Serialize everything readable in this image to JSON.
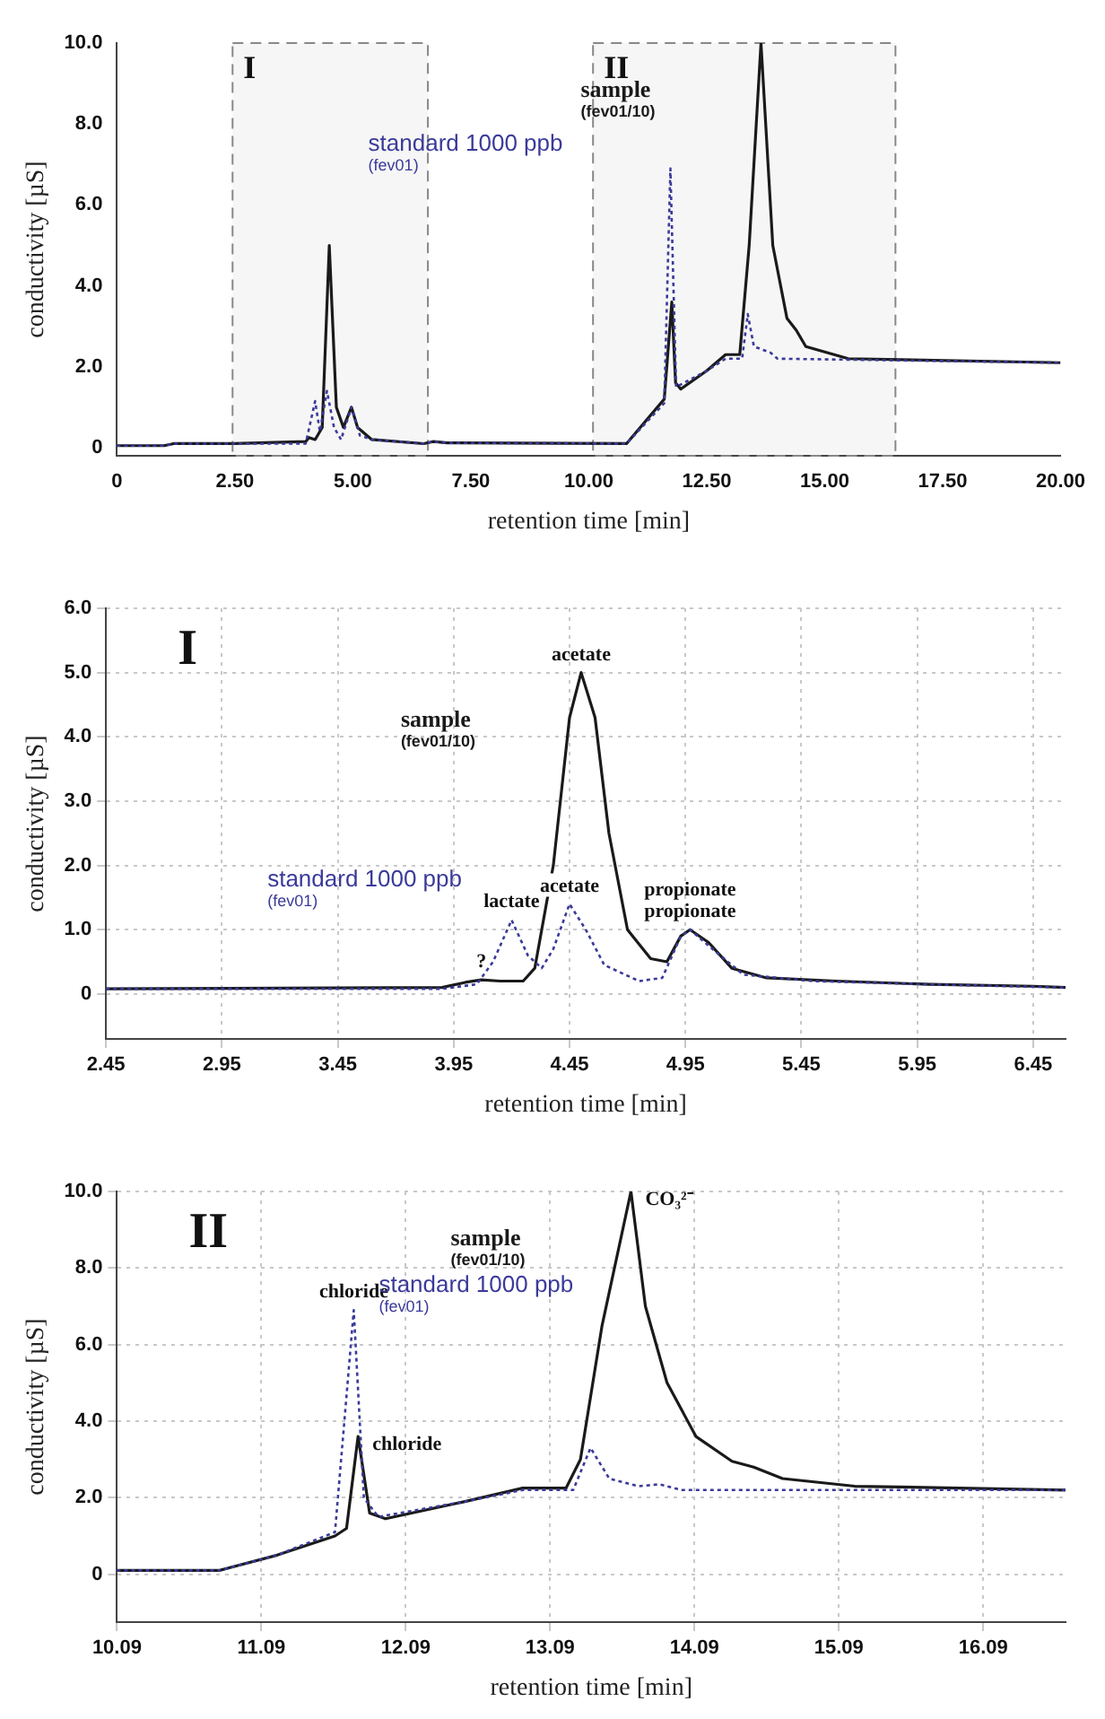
{
  "chart_data": [
    {
      "type": "line",
      "xlabel": "retention time [min]",
      "ylabel": "conductivity [µS]",
      "xlim": [
        0,
        20
      ],
      "ylim": [
        -0.2,
        10
      ],
      "xticks": [
        {
          "value": 0,
          "label": "0"
        },
        {
          "value": 2.5,
          "label": "2.50"
        },
        {
          "value": 5,
          "label": "5.00"
        },
        {
          "value": 7.5,
          "label": "7.50"
        },
        {
          "value": 10,
          "label": "10.00"
        },
        {
          "value": 12.5,
          "label": "12.50"
        },
        {
          "value": 15,
          "label": "15.00"
        },
        {
          "value": 17.5,
          "label": "17.50"
        },
        {
          "value": 20,
          "label": "20.00"
        }
      ],
      "yticks": [
        {
          "value": 0,
          "label": "0"
        },
        {
          "value": 2,
          "label": "2.0"
        },
        {
          "value": 4,
          "label": "4.0"
        },
        {
          "value": 6,
          "label": "6.0"
        },
        {
          "value": 8,
          "label": "8.0"
        },
        {
          "value": 10,
          "label": "10.0"
        }
      ],
      "grid": false,
      "legend": false,
      "bands": [
        {
          "axis": "x",
          "from": 2.45,
          "to": 6.59,
          "label": "I",
          "color": "#888888"
        },
        {
          "axis": "x",
          "from": 10.09,
          "to": 16.5,
          "label": "II",
          "color": "#888888"
        }
      ],
      "series": [
        {
          "name": "sample (fev01/10)",
          "color": "#1a1a1a",
          "line_style": "solid",
          "x": [
            0,
            1,
            1.2,
            2.5,
            4,
            4.07,
            4.2,
            4.35,
            4.5,
            4.65,
            4.8,
            4.97,
            5.1,
            5.4,
            6.5,
            6.7,
            7,
            10.8,
            11.6,
            11.76,
            11.84,
            11.95,
            12.5,
            12.9,
            13.2,
            13.4,
            13.65,
            13.9,
            14.2,
            14.4,
            14.6,
            15.5,
            20
          ],
          "values": [
            0.05,
            0.05,
            0.1,
            0.1,
            0.15,
            0.25,
            0.2,
            0.5,
            5,
            1,
            0.5,
            1,
            0.5,
            0.2,
            0.1,
            0.15,
            0.12,
            0.1,
            1.2,
            3.6,
            1.6,
            1.45,
            1.9,
            2.3,
            2.3,
            5,
            10,
            5,
            3.2,
            2.9,
            2.5,
            2.2,
            2.1
          ]
        },
        {
          "name": "standard 1000 ppb (fev01)",
          "color": "#3a3a9a",
          "line_style": "dotted",
          "x": [
            0,
            1,
            1.2,
            2.5,
            4,
            4.2,
            4.3,
            4.45,
            4.6,
            4.75,
            4.97,
            5.15,
            5.4,
            6.5,
            6.7,
            7,
            10.8,
            11.6,
            11.73,
            11.85,
            12.5,
            12.9,
            13.25,
            13.37,
            13.5,
            13.85,
            14,
            20
          ],
          "values": [
            0.05,
            0.05,
            0.1,
            0.1,
            0.1,
            1.15,
            0.4,
            1.4,
            0.5,
            0.2,
            1,
            0.3,
            0.2,
            0.1,
            0.15,
            0.12,
            0.1,
            1.1,
            6.9,
            1.5,
            1.9,
            2.2,
            2.2,
            3.3,
            2.5,
            2.35,
            2.2,
            2.1
          ]
        }
      ]
    },
    {
      "type": "line",
      "title": "I",
      "xlabel": "retention time [min]",
      "ylabel": "conductivity [µS]",
      "xlim": [
        2.45,
        6.59
      ],
      "ylim": [
        -0.7,
        6
      ],
      "xticks": [
        2.45,
        2.95,
        3.45,
        3.95,
        4.45,
        4.95,
        5.45,
        5.95,
        6.45
      ],
      "yticks": [
        {
          "value": 0,
          "label": "0"
        },
        {
          "value": 1,
          "label": "1.0"
        },
        {
          "value": 2,
          "label": "2.0"
        },
        {
          "value": 3,
          "label": "3.0"
        },
        {
          "value": 4,
          "label": "4.0"
        },
        {
          "value": 5,
          "label": "5.0"
        },
        {
          "value": 6,
          "label": "6.0"
        }
      ],
      "grid": true,
      "legend": false,
      "annotations": [
        {
          "text": "acetate",
          "x": 4.5,
          "y": 5
        },
        {
          "text": "lactate",
          "x": 4.2,
          "y": 1.15
        },
        {
          "text": "acetate",
          "x": 4.45,
          "y": 1.4
        },
        {
          "text": "propionate",
          "x": 4.97,
          "y": 1
        },
        {
          "text": "propionate",
          "x": 4.97,
          "y": 1
        },
        {
          "text": "?",
          "x": 4.07,
          "y": 0.22
        }
      ],
      "series": [
        {
          "name": "sample (fev01/10)",
          "color": "#1a1a1a",
          "line_style": "solid",
          "x": [
            2.45,
            3.9,
            4,
            4.07,
            4.15,
            4.25,
            4.3,
            4.38,
            4.45,
            4.5,
            4.56,
            4.62,
            4.7,
            4.8,
            4.87,
            4.93,
            4.97,
            5.05,
            5.15,
            5.3,
            5.6,
            6,
            6.45,
            6.59
          ],
          "values": [
            0.08,
            0.1,
            0.18,
            0.22,
            0.2,
            0.2,
            0.4,
            2,
            4.3,
            5,
            4.3,
            2.5,
            1,
            0.55,
            0.5,
            0.9,
            1,
            0.8,
            0.4,
            0.25,
            0.2,
            0.15,
            0.12,
            0.1
          ]
        },
        {
          "name": "standard 1000 ppb (fev01)",
          "color": "#3a3a9a",
          "line_style": "dotted",
          "x": [
            2.45,
            3.9,
            4.05,
            4.12,
            4.2,
            4.27,
            4.33,
            4.38,
            4.45,
            4.52,
            4.6,
            4.75,
            4.85,
            4.93,
            4.97,
            5.05,
            5.2,
            5.5,
            6,
            6.59
          ],
          "values": [
            0.08,
            0.08,
            0.15,
            0.5,
            1.15,
            0.6,
            0.4,
            0.7,
            1.4,
            1,
            0.45,
            0.2,
            0.25,
            0.9,
            1,
            0.75,
            0.3,
            0.2,
            0.15,
            0.1
          ]
        }
      ]
    },
    {
      "type": "line",
      "title": "II",
      "xlabel": "retention time [min]",
      "ylabel": "conductivity [µS]",
      "xlim": [
        10.09,
        16.66
      ],
      "ylim": [
        -1.25,
        10
      ],
      "xticks": [
        10.09,
        11.09,
        12.09,
        13.09,
        14.09,
        15.09,
        16.09
      ],
      "yticks": [
        {
          "value": 0,
          "label": "0"
        },
        {
          "value": 2,
          "label": "2.0"
        },
        {
          "value": 4,
          "label": "4.0"
        },
        {
          "value": 6,
          "label": "6.0"
        },
        {
          "value": 8,
          "label": "8.0"
        },
        {
          "value": 10,
          "label": "10.0"
        }
      ],
      "grid": true,
      "legend": false,
      "annotations": [
        {
          "text": "chloride",
          "x": 11.73,
          "y": 6.9
        },
        {
          "text": "chloride",
          "x": 11.76,
          "y": 3.6
        },
        {
          "text": "CO₃²⁻",
          "x": 13.65,
          "y": 10
        }
      ],
      "series": [
        {
          "name": "sample (fev01/10)",
          "color": "#1a1a1a",
          "line_style": "solid",
          "x": [
            10.09,
            10.8,
            11.2,
            11.6,
            11.68,
            11.76,
            11.84,
            11.95,
            12.5,
            12.9,
            13.2,
            13.3,
            13.45,
            13.65,
            13.75,
            13.9,
            14.1,
            14.35,
            14.5,
            14.7,
            15.2,
            16.66
          ],
          "values": [
            0.1,
            0.1,
            0.5,
            1,
            1.2,
            3.6,
            1.6,
            1.45,
            1.9,
            2.25,
            2.25,
            3,
            6.5,
            10,
            7,
            5,
            3.6,
            2.95,
            2.8,
            2.5,
            2.3,
            2.2
          ]
        },
        {
          "name": "standard 1000 ppb (fev01)",
          "color": "#3a3a9a",
          "line_style": "dotted",
          "x": [
            10.09,
            10.8,
            11.2,
            11.6,
            11.73,
            11.8,
            11.9,
            12.5,
            12.9,
            13.25,
            13.37,
            13.5,
            13.7,
            13.85,
            14,
            16.66
          ],
          "values": [
            0.1,
            0.1,
            0.5,
            1.1,
            6.9,
            2,
            1.5,
            1.9,
            2.2,
            2.2,
            3.3,
            2.5,
            2.3,
            2.35,
            2.2,
            2.2
          ]
        }
      ]
    }
  ]
}
